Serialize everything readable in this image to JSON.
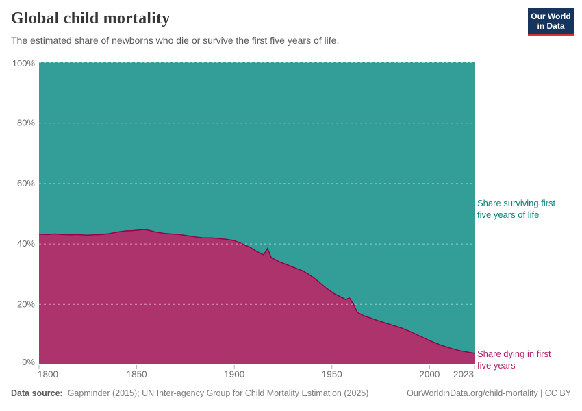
{
  "header": {
    "title": "Global child mortality",
    "subtitle": "The estimated share of newborns who die or survive the first five years of life."
  },
  "logo": {
    "line1": "Our World",
    "line2": "in Data",
    "bg_color": "#16345C",
    "bar_color": "#D0342C",
    "text_color": "#FFFFFF"
  },
  "legend": {
    "surviving": {
      "line1": "Share surviving first",
      "line2": "five years of life",
      "color": "#0B837D"
    },
    "dying": {
      "line1": "Share dying in first",
      "line2": "five years",
      "color": "#B0246A"
    }
  },
  "axis": {
    "tick_label_color": "#6E6E6E",
    "tick_mark_color": "#B2B2B2",
    "gridline_color": "rgba(255,255,255,0.5)"
  },
  "chart_data": {
    "type": "area",
    "stacked": true,
    "title": "Global child mortality",
    "xlabel": "",
    "ylabel": "",
    "xlim": [
      1800,
      2023
    ],
    "ylim": [
      0,
      100
    ],
    "x_tick_years": [
      1800,
      1850,
      1900,
      1950,
      2000,
      2023
    ],
    "y_tick_values": [
      0,
      20,
      40,
      60,
      80,
      100
    ],
    "y_tick_labels": [
      "0%",
      "20%",
      "40%",
      "60%",
      "80%",
      "100%"
    ],
    "grid": "dashed horizontal gridlines drawn over the areas",
    "legend_position": "labels at right edge of plot",
    "years": [
      1800,
      1804,
      1808,
      1812,
      1816,
      1820,
      1824,
      1828,
      1832,
      1836,
      1840,
      1844,
      1848,
      1851,
      1854,
      1857,
      1860,
      1864,
      1868,
      1872,
      1876,
      1880,
      1884,
      1888,
      1892,
      1896,
      1900,
      1904,
      1908,
      1912,
      1915,
      1917,
      1919,
      1923,
      1927,
      1931,
      1935,
      1939,
      1943,
      1947,
      1951,
      1955,
      1957,
      1959,
      1961,
      1963,
      1966,
      1970,
      1975,
      1980,
      1985,
      1990,
      1995,
      2000,
      2005,
      2010,
      2015,
      2020,
      2023
    ],
    "series": [
      {
        "name": "Share dying in first five years",
        "values": [
          43.1,
          43.0,
          43.2,
          43.0,
          42.9,
          43.0,
          42.8,
          42.9,
          43.0,
          43.3,
          43.8,
          44.2,
          44.3,
          44.5,
          44.7,
          44.3,
          43.8,
          43.4,
          43.2,
          43.0,
          42.6,
          42.2,
          41.9,
          41.9,
          41.7,
          41.4,
          41.0,
          39.9,
          38.8,
          37.2,
          36.3,
          38.4,
          35.3,
          34.0,
          33.0,
          32.0,
          31.0,
          29.5,
          27.5,
          25.3,
          23.5,
          22.2,
          21.5,
          22.0,
          20.0,
          17.2,
          16.2,
          15.3,
          14.2,
          13.2,
          12.2,
          10.9,
          9.4,
          7.9,
          6.6,
          5.5,
          4.6,
          4.0,
          3.7
        ],
        "fill": "#AC336B",
        "edge": "#970046"
      },
      {
        "name": "Share surviving first five years of life",
        "values_note": "100 minus the dying share (areas stack to 100%)",
        "fill": "#339D98"
      }
    ]
  },
  "footer": {
    "source_label": "Data source:",
    "source_text": "Gapminder (2015); UN Inter-agency Group for Child Mortality Estimation (2025)",
    "link": "OurWorldinData.org/child-mortality",
    "divider": " | ",
    "license": "CC BY"
  }
}
